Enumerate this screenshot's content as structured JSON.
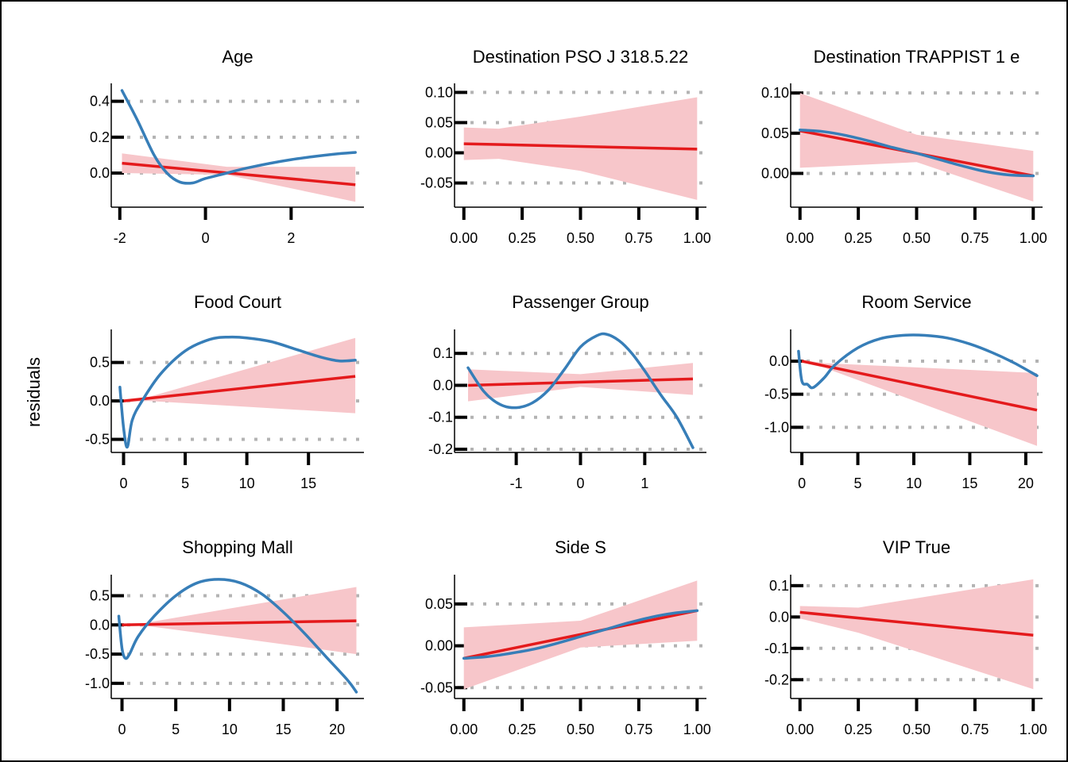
{
  "ylabel": "residuals",
  "colors": {
    "fit_line": "#e41a1c",
    "ci_band": "#f7c6ca",
    "smooth_line": "#377eb8",
    "gridline": "#b3b3b3",
    "axis": "#000000"
  },
  "chart_data": [
    {
      "type": "line",
      "title": "Age",
      "xlim": [
        -2.2,
        3.7
      ],
      "ylim": [
        -0.19,
        0.5
      ],
      "xticks": [
        -2,
        0,
        2
      ],
      "xtick_labels": [
        "-2",
        "0",
        "2"
      ],
      "yticks": [
        0.0,
        0.2,
        0.4
      ],
      "ytick_labels": [
        "0.0",
        "0.2",
        "0.4"
      ],
      "grid": true,
      "series": [
        {
          "role": "fit",
          "x": [
            -1.95,
            3.5
          ],
          "y": [
            0.055,
            -0.065
          ]
        },
        {
          "role": "ci_upper",
          "x": [
            -1.95,
            0.5,
            3.5
          ],
          "y": [
            0.11,
            0.035,
            0.035
          ]
        },
        {
          "role": "ci_lower",
          "x": [
            -1.95,
            0.5,
            3.5
          ],
          "y": [
            0.0,
            -0.01,
            -0.16
          ]
        },
        {
          "role": "smooth",
          "x": [
            -1.95,
            -1.6,
            -1.2,
            -0.9,
            -0.6,
            -0.3,
            0.0,
            0.5,
            1.0,
            2.0,
            3.0,
            3.5
          ],
          "y": [
            0.46,
            0.3,
            0.1,
            0.0,
            -0.05,
            -0.055,
            -0.03,
            0.0,
            0.03,
            0.075,
            0.105,
            0.115
          ]
        }
      ]
    },
    {
      "type": "line",
      "title": "Destination PSO J 318.5.22",
      "xlim": [
        -0.04,
        1.04
      ],
      "ylim": [
        -0.09,
        0.115
      ],
      "xticks": [
        0,
        0.25,
        0.5,
        0.75,
        1
      ],
      "xtick_labels": [
        "0.00",
        "0.25",
        "0.50",
        "0.75",
        "1.00"
      ],
      "yticks": [
        -0.05,
        0.0,
        0.05,
        0.1
      ],
      "ytick_labels": [
        "-0.05",
        "0.00",
        "0.05",
        "0.10"
      ],
      "grid": true,
      "series": [
        {
          "role": "fit",
          "x": [
            0,
            1
          ],
          "y": [
            0.015,
            0.006
          ]
        },
        {
          "role": "ci_upper",
          "x": [
            0,
            0.15,
            0.5,
            1
          ],
          "y": [
            0.042,
            0.04,
            0.06,
            0.092
          ]
        },
        {
          "role": "ci_lower",
          "x": [
            0,
            0.15,
            0.5,
            1
          ],
          "y": [
            -0.012,
            -0.01,
            -0.03,
            -0.078
          ]
        }
      ]
    },
    {
      "type": "line",
      "title": "Destination TRAPPIST 1 e",
      "xlim": [
        -0.04,
        1.04
      ],
      "ylim": [
        -0.042,
        0.112
      ],
      "xticks": [
        0,
        0.25,
        0.5,
        0.75,
        1
      ],
      "xtick_labels": [
        "0.00",
        "0.25",
        "0.50",
        "0.75",
        "1.00"
      ],
      "yticks": [
        0.0,
        0.05,
        0.1
      ],
      "ytick_labels": [
        "0.00",
        "0.05",
        "0.10"
      ],
      "grid": true,
      "series": [
        {
          "role": "fit",
          "x": [
            0,
            1
          ],
          "y": [
            0.053,
            -0.003
          ]
        },
        {
          "role": "ci_upper",
          "x": [
            0,
            0.5,
            1
          ],
          "y": [
            0.1,
            0.048,
            0.028
          ]
        },
        {
          "role": "ci_lower",
          "x": [
            0,
            0.5,
            1
          ],
          "y": [
            0.007,
            0.014,
            -0.035
          ]
        },
        {
          "role": "smooth",
          "x": [
            0,
            0.1,
            0.2,
            0.3,
            0.4,
            0.5,
            0.6,
            0.7,
            0.8,
            0.9,
            1.0
          ],
          "y": [
            0.054,
            0.052,
            0.047,
            0.04,
            0.032,
            0.025,
            0.017,
            0.009,
            0.002,
            -0.002,
            -0.003
          ]
        }
      ]
    },
    {
      "type": "line",
      "title": "Food Court",
      "xlim": [
        -1.0,
        19.5
      ],
      "ylim": [
        -0.67,
        0.93
      ],
      "xticks": [
        0,
        5,
        10,
        15
      ],
      "xtick_labels": [
        "0",
        "5",
        "10",
        "15"
      ],
      "yticks": [
        -0.5,
        0.0,
        0.5
      ],
      "ytick_labels": [
        "-0.5",
        "0.0",
        "0.5"
      ],
      "grid": true,
      "series": [
        {
          "role": "fit",
          "x": [
            0,
            18.8
          ],
          "y": [
            0.0,
            0.32
          ]
        },
        {
          "role": "ci_upper",
          "x": [
            0,
            2,
            18.8
          ],
          "y": [
            0.02,
            0.05,
            0.82
          ]
        },
        {
          "role": "ci_lower",
          "x": [
            0,
            2,
            18.8
          ],
          "y": [
            -0.02,
            0.0,
            -0.16
          ]
        },
        {
          "role": "smooth",
          "x": [
            -0.3,
            0.0,
            0.3,
            0.7,
            1.5,
            3,
            5,
            7,
            8.5,
            10,
            12,
            14,
            16,
            17.5,
            18.8
          ],
          "y": [
            0.18,
            -0.35,
            -0.6,
            -0.25,
            0.0,
            0.35,
            0.65,
            0.8,
            0.83,
            0.82,
            0.77,
            0.67,
            0.57,
            0.52,
            0.53
          ]
        }
      ]
    },
    {
      "type": "line",
      "title": "Passenger Group",
      "xlim": [
        -1.96,
        1.96
      ],
      "ylim": [
        -0.21,
        0.175
      ],
      "xticks": [
        -1,
        0,
        1
      ],
      "xtick_labels": [
        "-1",
        "0",
        "1"
      ],
      "yticks": [
        -0.2,
        -0.1,
        0.0,
        0.1
      ],
      "ytick_labels": [
        "-0.2",
        "-0.1",
        "0.0",
        "0.1"
      ],
      "grid": true,
      "series": [
        {
          "role": "fit",
          "x": [
            -1.75,
            1.75
          ],
          "y": [
            0.0,
            0.02
          ]
        },
        {
          "role": "ci_upper",
          "x": [
            -1.75,
            0,
            1.75
          ],
          "y": [
            0.05,
            0.035,
            0.07
          ]
        },
        {
          "role": "ci_lower",
          "x": [
            -1.75,
            0,
            1.75
          ],
          "y": [
            -0.05,
            -0.005,
            -0.03
          ]
        },
        {
          "role": "smooth",
          "x": [
            -1.75,
            -1.5,
            -1.25,
            -1.0,
            -0.75,
            -0.5,
            -0.25,
            0.0,
            0.25,
            0.4,
            0.6,
            0.8,
            1.0,
            1.25,
            1.5,
            1.75
          ],
          "y": [
            0.055,
            -0.02,
            -0.06,
            -0.07,
            -0.055,
            -0.015,
            0.05,
            0.12,
            0.155,
            0.16,
            0.14,
            0.1,
            0.045,
            -0.03,
            -0.1,
            -0.195
          ]
        }
      ]
    },
    {
      "type": "line",
      "title": "Room Service",
      "xlim": [
        -1.0,
        21.5
      ],
      "ylim": [
        -1.38,
        0.48
      ],
      "xticks": [
        0,
        5,
        10,
        15,
        20
      ],
      "xtick_labels": [
        "0",
        "5",
        "10",
        "15",
        "20"
      ],
      "yticks": [
        -1.0,
        -0.5,
        0.0
      ],
      "ytick_labels": [
        "-1.0",
        "-0.5",
        "0.0"
      ],
      "grid": true,
      "series": [
        {
          "role": "fit",
          "x": [
            0,
            21
          ],
          "y": [
            0.0,
            -0.74
          ]
        },
        {
          "role": "ci_upper",
          "x": [
            0,
            2,
            21
          ],
          "y": [
            0.02,
            -0.03,
            -0.18
          ]
        },
        {
          "role": "ci_lower",
          "x": [
            0,
            2,
            21
          ],
          "y": [
            -0.02,
            -0.1,
            -1.28
          ]
        },
        {
          "role": "smooth",
          "x": [
            -0.3,
            0.0,
            0.5,
            1.0,
            2.0,
            3.0,
            5,
            7,
            9,
            11,
            13,
            15,
            17,
            19,
            21
          ],
          "y": [
            0.15,
            -0.3,
            -0.35,
            -0.4,
            -0.25,
            -0.05,
            0.2,
            0.34,
            0.39,
            0.39,
            0.35,
            0.26,
            0.13,
            -0.03,
            -0.22
          ]
        }
      ]
    },
    {
      "type": "line",
      "title": "Shopping Mall",
      "xlim": [
        -1.0,
        22.5
      ],
      "ylim": [
        -1.26,
        0.86
      ],
      "xticks": [
        0,
        5,
        10,
        15,
        20
      ],
      "xtick_labels": [
        "0",
        "5",
        "10",
        "15",
        "20"
      ],
      "yticks": [
        -1.0,
        -0.5,
        0.0,
        0.5
      ],
      "ytick_labels": [
        "-1.0",
        "-0.5",
        "0.0",
        "0.5"
      ],
      "grid": true,
      "series": [
        {
          "role": "fit",
          "x": [
            0,
            21.8
          ],
          "y": [
            0.0,
            0.07
          ]
        },
        {
          "role": "ci_upper",
          "x": [
            0,
            2,
            21.8
          ],
          "y": [
            0.02,
            0.03,
            0.65
          ]
        },
        {
          "role": "ci_lower",
          "x": [
            0,
            2,
            21.8
          ],
          "y": [
            -0.02,
            -0.01,
            -0.5
          ]
        },
        {
          "role": "smooth",
          "x": [
            -0.3,
            0.0,
            0.3,
            0.7,
            1.5,
            3,
            5,
            7,
            9,
            11,
            13,
            15,
            17,
            19,
            21,
            21.8
          ],
          "y": [
            0.15,
            -0.4,
            -0.57,
            -0.5,
            -0.2,
            0.15,
            0.5,
            0.72,
            0.78,
            0.72,
            0.53,
            0.22,
            -0.15,
            -0.55,
            -0.95,
            -1.15
          ]
        }
      ]
    },
    {
      "type": "line",
      "title": "Side S",
      "xlim": [
        -0.04,
        1.04
      ],
      "ylim": [
        -0.063,
        0.085
      ],
      "xticks": [
        0,
        0.25,
        0.5,
        0.75,
        1
      ],
      "xtick_labels": [
        "0.00",
        "0.25",
        "0.50",
        "0.75",
        "1.00"
      ],
      "yticks": [
        -0.05,
        0.0,
        0.05
      ],
      "ytick_labels": [
        "-0.05",
        "0.00",
        "0.05"
      ],
      "grid": true,
      "series": [
        {
          "role": "fit",
          "x": [
            0,
            1
          ],
          "y": [
            -0.015,
            0.042
          ]
        },
        {
          "role": "ci_upper",
          "x": [
            0,
            0.5,
            1
          ],
          "y": [
            0.022,
            0.03,
            0.078
          ]
        },
        {
          "role": "ci_lower",
          "x": [
            0,
            0.5,
            1
          ],
          "y": [
            -0.052,
            -0.002,
            0.006
          ]
        },
        {
          "role": "smooth",
          "x": [
            0,
            0.1,
            0.2,
            0.3,
            0.4,
            0.5,
            0.6,
            0.7,
            0.8,
            0.9,
            1.0
          ],
          "y": [
            -0.015,
            -0.013,
            -0.009,
            -0.004,
            0.003,
            0.011,
            0.019,
            0.027,
            0.034,
            0.039,
            0.042
          ]
        }
      ]
    },
    {
      "type": "line",
      "title": "VIP True",
      "xlim": [
        -0.04,
        1.04
      ],
      "ylim": [
        -0.26,
        0.135
      ],
      "xticks": [
        0,
        0.25,
        0.5,
        0.75,
        1
      ],
      "xtick_labels": [
        "0.00",
        "0.25",
        "0.50",
        "0.75",
        "1.00"
      ],
      "yticks": [
        -0.2,
        -0.1,
        0.0,
        0.1
      ],
      "ytick_labels": [
        "-0.2",
        "-0.1",
        "0.0",
        "0.1"
      ],
      "grid": true,
      "series": [
        {
          "role": "fit",
          "x": [
            0,
            1
          ],
          "y": [
            0.015,
            -0.058
          ]
        },
        {
          "role": "ci_upper",
          "x": [
            0,
            0.25,
            1
          ],
          "y": [
            0.035,
            0.03,
            0.12
          ]
        },
        {
          "role": "ci_lower",
          "x": [
            0,
            0.25,
            1
          ],
          "y": [
            -0.005,
            -0.05,
            -0.23
          ]
        }
      ]
    }
  ]
}
